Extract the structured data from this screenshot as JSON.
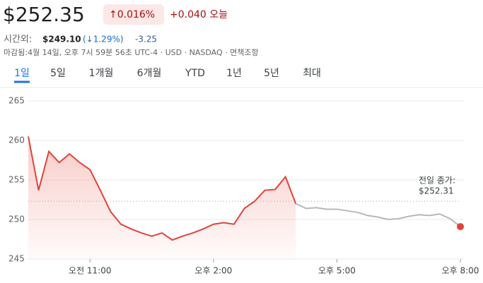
{
  "header": {
    "price": "$252.35",
    "change_pct": "↑0.016%",
    "change_today": "+0.040 오늘",
    "after_hours_label": "시간외:",
    "after_hours_price": "$249.10",
    "after_hours_pct": "(↓1.29%)",
    "after_hours_change": "-3.25",
    "status": "마감됨:4월 14일, 오후 7시 59분 56초 UTC-4 · USD · NASDAQ · 면책조항"
  },
  "tabs": [
    "1일",
    "5일",
    "1개월",
    "6개월",
    "YTD",
    "1년",
    "5년",
    "최대"
  ],
  "chart_data": {
    "type": "line",
    "x": [
      9.5,
      9.75,
      10,
      10.25,
      10.5,
      10.75,
      11,
      11.25,
      11.5,
      11.75,
      12,
      12.25,
      12.5,
      12.75,
      13,
      13.25,
      13.5,
      13.75,
      14,
      14.25,
      14.5,
      14.75,
      15,
      15.25,
      15.5,
      15.75,
      16,
      16.25,
      16.5,
      16.75,
      17,
      17.25,
      17.5,
      17.75,
      18,
      18.25,
      18.5,
      18.75,
      19,
      19.25,
      19.5,
      19.75,
      20
    ],
    "series": [
      {
        "color": "#e0443a",
        "values": [
          260.5,
          253.7,
          258.6,
          257.2,
          258.3,
          257.2,
          256.3,
          253.7,
          251.0,
          249.4,
          248.8,
          248.3,
          247.9,
          248.3,
          247.4,
          247.9,
          248.3,
          248.8,
          249.4,
          249.6,
          249.4,
          251.4,
          252.3,
          253.7,
          253.8,
          255.4,
          252.0,
          null,
          null,
          null,
          null,
          null,
          null,
          null,
          null,
          null,
          null,
          null,
          null,
          null,
          null,
          null,
          null
        ]
      },
      {
        "color": "#b8b8b8",
        "values": [
          null,
          null,
          null,
          null,
          null,
          null,
          null,
          null,
          null,
          null,
          null,
          null,
          null,
          null,
          null,
          null,
          null,
          null,
          null,
          null,
          null,
          null,
          null,
          null,
          null,
          null,
          252.0,
          251.4,
          251.5,
          251.3,
          251.3,
          251.1,
          250.9,
          250.5,
          250.3,
          250.0,
          250.1,
          250.4,
          250.6,
          250.5,
          250.7,
          250.1,
          249.1
        ]
      }
    ],
    "xlim": [
      9.5,
      20
    ],
    "xticks": [
      {
        "value": 11,
        "label": "오전 11:00"
      },
      {
        "value": 14,
        "label": "오후 2:00"
      },
      {
        "value": 17,
        "label": "오후 5:00"
      },
      {
        "value": 20,
        "label": "오후 8:00"
      }
    ],
    "ylim": [
      245,
      265
    ],
    "yticks": [
      245,
      250,
      255,
      260,
      265
    ],
    "grid": true,
    "previous_close": {
      "value": 252.31,
      "label": "$252.31"
    },
    "previous_close_title": "전일 종가:"
  }
}
